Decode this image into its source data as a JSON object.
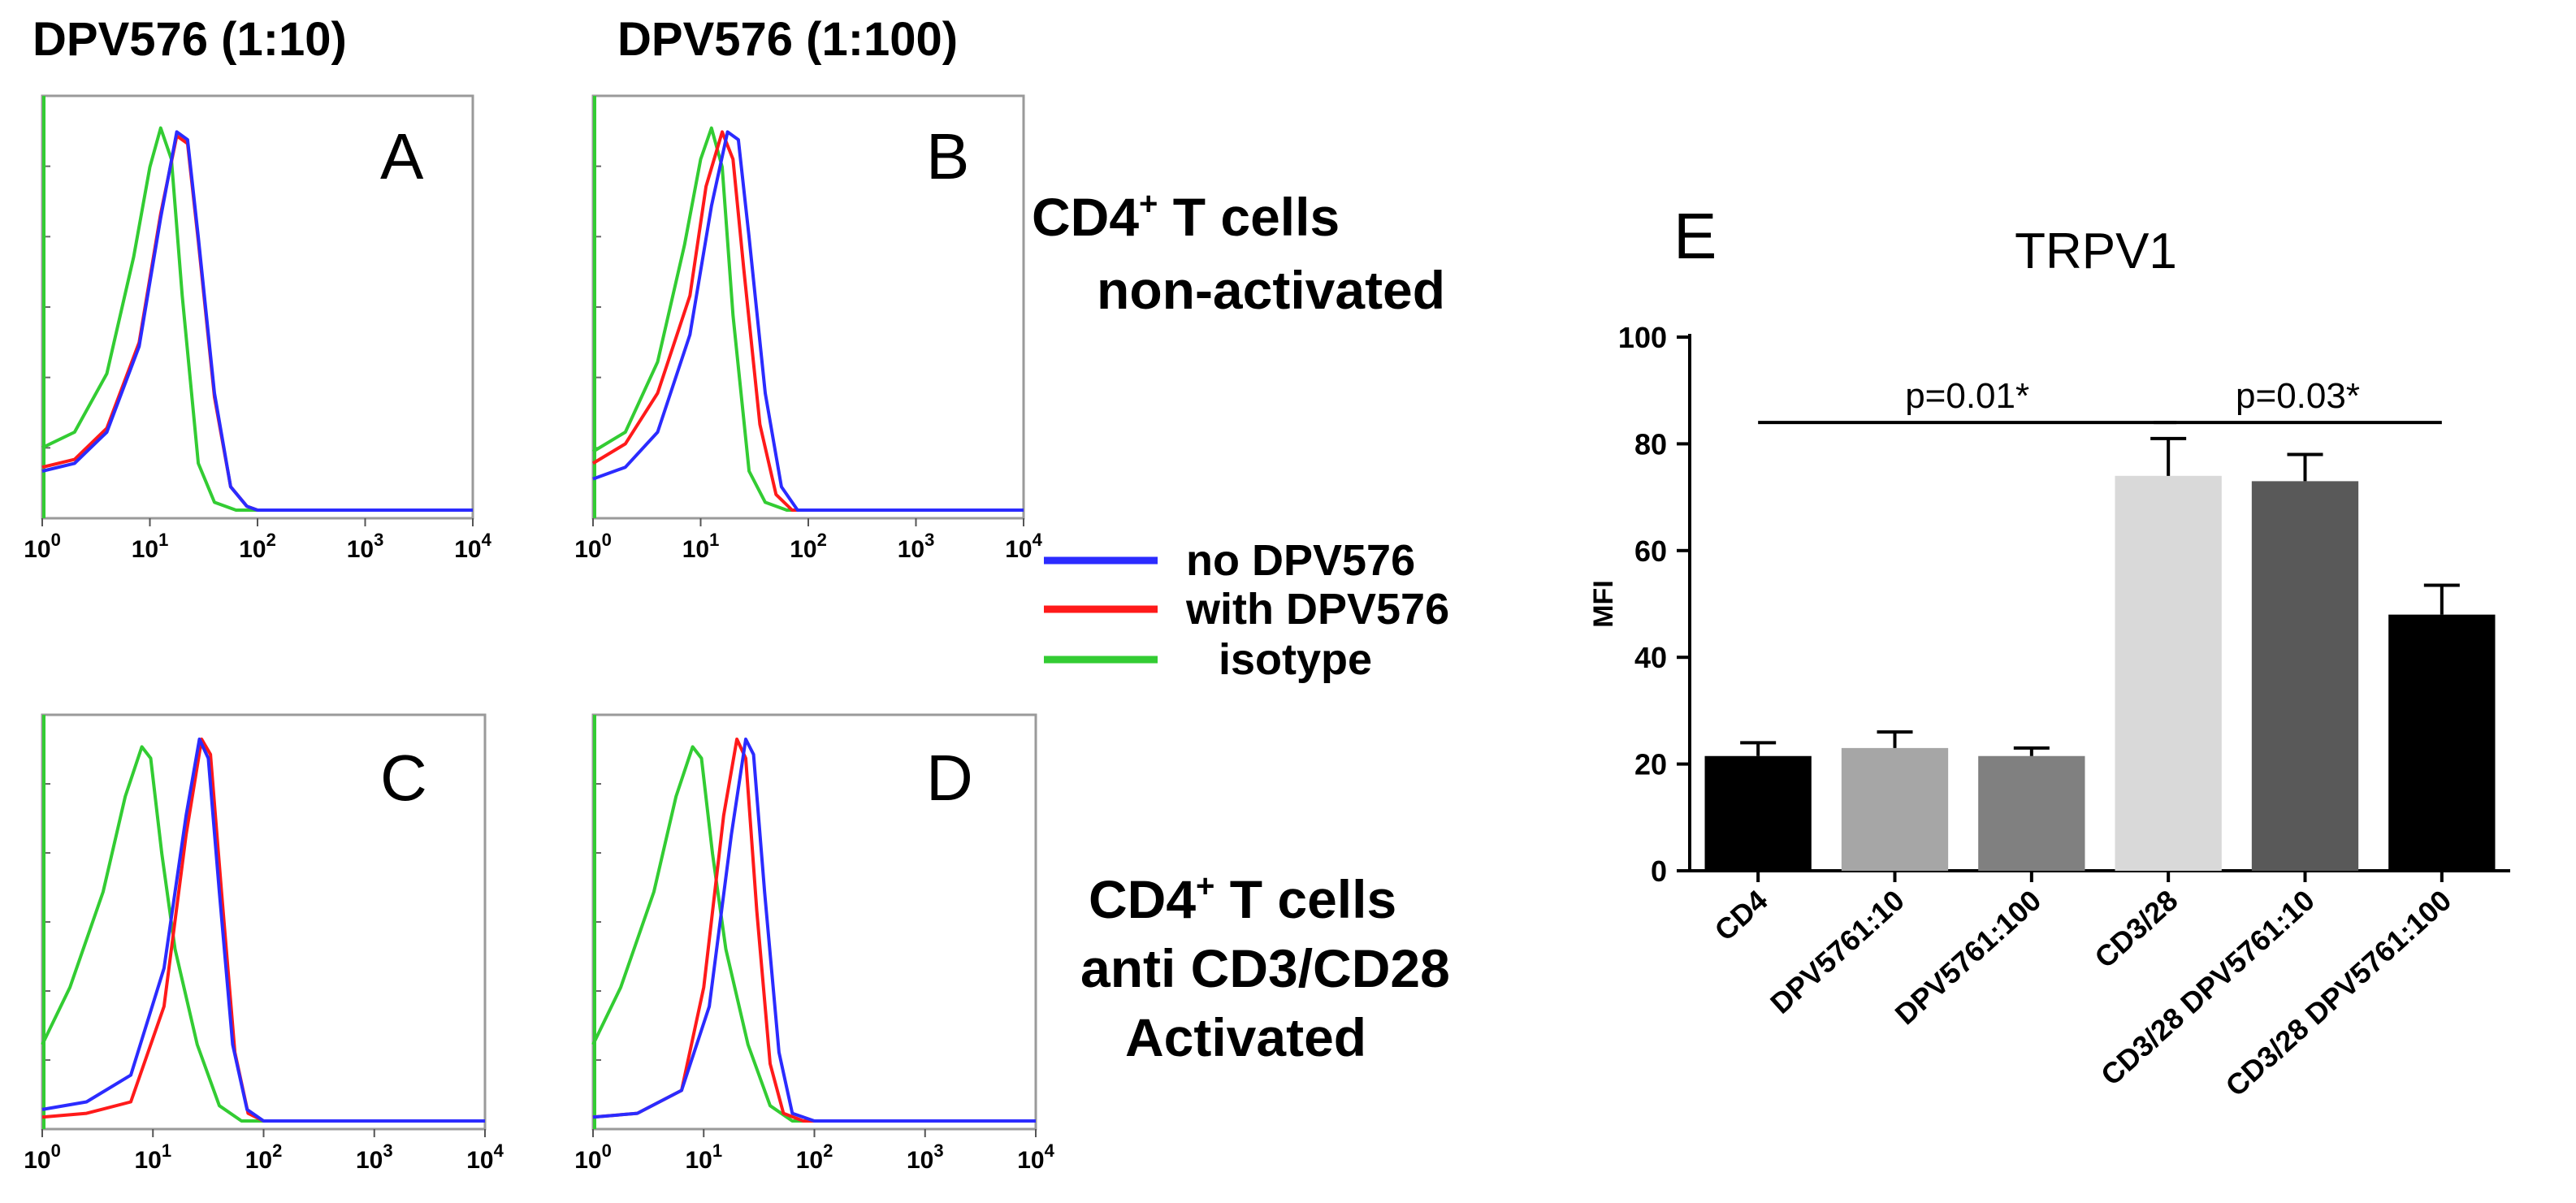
{
  "header": {
    "col1": "DPV576 (1:10)",
    "col2": "DPV576 (1:100)"
  },
  "side_labels": {
    "top_line1": "CD4",
    "top_sup": "+",
    "top_line1_rest": " T cells",
    "top_line2": "non-activated",
    "bottom_line1": "CD4",
    "bottom_sup": "+",
    "bottom_line1_rest": " T cells",
    "bottom_line2": "anti CD3/CD28",
    "bottom_line3": "Activated"
  },
  "legend": {
    "items": [
      {
        "label": "no DPV576",
        "color": "#2b2bff"
      },
      {
        "label": "with DPV576",
        "color": "#ff1a1a"
      },
      {
        "label": "isotype",
        "color": "#33cc33"
      }
    ]
  },
  "histogram_axis": {
    "ticks": [
      {
        "base": "10",
        "exp": "0",
        "value": 0
      },
      {
        "base": "10",
        "exp": "1",
        "value": 1
      },
      {
        "base": "10",
        "exp": "2",
        "value": 2
      },
      {
        "base": "10",
        "exp": "3",
        "value": 3
      },
      {
        "base": "10",
        "exp": "4",
        "value": 4
      }
    ]
  },
  "chart_data": [
    {
      "type": "line",
      "panel": "A",
      "title": "A",
      "xscale": "log10",
      "xlim": [
        0,
        4
      ],
      "ylim": [
        0,
        1
      ],
      "series": [
        {
          "name": "no DPV576",
          "color": "#2b2bff",
          "x": [
            0,
            0.3,
            0.6,
            0.9,
            1.1,
            1.25,
            1.35,
            1.45,
            1.6,
            1.75,
            1.9,
            2.0,
            4
          ],
          "y": [
            0.1,
            0.12,
            0.2,
            0.42,
            0.75,
            0.97,
            0.95,
            0.7,
            0.3,
            0.06,
            0.01,
            0,
            0
          ]
        },
        {
          "name": "with DPV576",
          "color": "#ff1a1a",
          "x": [
            0,
            0.3,
            0.6,
            0.9,
            1.1,
            1.25,
            1.35,
            1.45,
            1.6,
            1.75,
            1.9,
            2.0,
            4
          ],
          "y": [
            0.11,
            0.13,
            0.21,
            0.43,
            0.76,
            0.96,
            0.94,
            0.69,
            0.29,
            0.06,
            0.01,
            0,
            0
          ]
        },
        {
          "name": "isotype",
          "color": "#33cc33",
          "x": [
            0,
            0.3,
            0.6,
            0.85,
            1.0,
            1.1,
            1.2,
            1.3,
            1.45,
            1.6,
            1.8,
            4
          ],
          "y": [
            0.16,
            0.2,
            0.35,
            0.65,
            0.88,
            0.98,
            0.9,
            0.55,
            0.12,
            0.02,
            0,
            0
          ]
        }
      ]
    },
    {
      "type": "line",
      "panel": "B",
      "title": "B",
      "xscale": "log10",
      "xlim": [
        0,
        4
      ],
      "ylim": [
        0,
        1
      ],
      "series": [
        {
          "name": "no DPV576",
          "color": "#2b2bff",
          "x": [
            0,
            0.3,
            0.6,
            0.9,
            1.1,
            1.25,
            1.35,
            1.45,
            1.6,
            1.75,
            1.9,
            4
          ],
          "y": [
            0.08,
            0.11,
            0.2,
            0.45,
            0.78,
            0.97,
            0.95,
            0.7,
            0.3,
            0.06,
            0,
            0
          ]
        },
        {
          "name": "with DPV576",
          "color": "#ff1a1a",
          "x": [
            0,
            0.3,
            0.6,
            0.9,
            1.05,
            1.2,
            1.3,
            1.4,
            1.55,
            1.7,
            1.85,
            4
          ],
          "y": [
            0.12,
            0.17,
            0.3,
            0.55,
            0.83,
            0.97,
            0.9,
            0.62,
            0.22,
            0.04,
            0,
            0
          ]
        },
        {
          "name": "isotype",
          "color": "#33cc33",
          "x": [
            0,
            0.3,
            0.6,
            0.85,
            1.0,
            1.1,
            1.2,
            1.3,
            1.45,
            1.6,
            1.8,
            4
          ],
          "y": [
            0.15,
            0.2,
            0.38,
            0.68,
            0.9,
            0.98,
            0.88,
            0.5,
            0.1,
            0.02,
            0,
            0
          ]
        }
      ]
    },
    {
      "type": "line",
      "panel": "C",
      "title": "C",
      "xscale": "log10",
      "xlim": [
        0,
        4
      ],
      "ylim": [
        0,
        1
      ],
      "series": [
        {
          "name": "no DPV576",
          "color": "#2b2bff",
          "x": [
            0,
            0.4,
            0.8,
            1.1,
            1.3,
            1.42,
            1.5,
            1.6,
            1.72,
            1.85,
            2.0,
            4
          ],
          "y": [
            0.03,
            0.05,
            0.12,
            0.4,
            0.8,
            1.0,
            0.95,
            0.6,
            0.2,
            0.03,
            0,
            0
          ]
        },
        {
          "name": "with DPV576",
          "color": "#ff1a1a",
          "x": [
            0,
            0.4,
            0.8,
            1.1,
            1.3,
            1.44,
            1.52,
            1.62,
            1.74,
            1.86,
            2.0,
            4
          ],
          "y": [
            0.01,
            0.02,
            0.05,
            0.3,
            0.75,
            1.0,
            0.96,
            0.6,
            0.18,
            0.02,
            0,
            0
          ]
        },
        {
          "name": "isotype",
          "color": "#33cc33",
          "x": [
            0,
            0.25,
            0.55,
            0.75,
            0.9,
            0.98,
            1.08,
            1.2,
            1.4,
            1.6,
            1.8,
            4
          ],
          "y": [
            0.2,
            0.35,
            0.6,
            0.85,
            0.98,
            0.95,
            0.7,
            0.45,
            0.2,
            0.04,
            0,
            0
          ]
        }
      ]
    },
    {
      "type": "line",
      "panel": "D",
      "title": "D",
      "xscale": "log10",
      "xlim": [
        0,
        4
      ],
      "ylim": [
        0,
        1
      ],
      "series": [
        {
          "name": "no DPV576",
          "color": "#2b2bff",
          "x": [
            0,
            0.4,
            0.8,
            1.05,
            1.25,
            1.38,
            1.45,
            1.55,
            1.68,
            1.8,
            2.0,
            4
          ],
          "y": [
            0.01,
            0.02,
            0.08,
            0.3,
            0.75,
            1.0,
            0.96,
            0.6,
            0.18,
            0.02,
            0,
            0
          ]
        },
        {
          "name": "with DPV576",
          "color": "#ff1a1a",
          "x": [
            0,
            0.4,
            0.8,
            1.0,
            1.18,
            1.3,
            1.38,
            1.48,
            1.6,
            1.72,
            1.9,
            4
          ],
          "y": [
            0.01,
            0.02,
            0.08,
            0.35,
            0.8,
            1.0,
            0.95,
            0.55,
            0.15,
            0.02,
            0,
            0
          ]
        },
        {
          "name": "isotype",
          "color": "#33cc33",
          "x": [
            0,
            0.25,
            0.55,
            0.75,
            0.9,
            0.98,
            1.08,
            1.2,
            1.4,
            1.6,
            1.8,
            4
          ],
          "y": [
            0.2,
            0.35,
            0.6,
            0.85,
            0.98,
            0.95,
            0.7,
            0.45,
            0.2,
            0.04,
            0,
            0
          ]
        }
      ]
    },
    {
      "type": "bar",
      "panel": "E",
      "panel_letter": "E",
      "title": "TRPV1",
      "ylabel": "MFI",
      "xlabel": "",
      "ylim": [
        0,
        100
      ],
      "yticks": [
        0,
        20,
        40,
        60,
        80,
        100
      ],
      "categories": [
        "CD4",
        "DPV5761:10",
        "DPV5761:100",
        "CD3/28",
        "CD3/28 DPV5761:10",
        "CD3/28 DPV5761:100"
      ],
      "values": [
        21.5,
        23,
        21.5,
        74,
        73,
        48
      ],
      "errors": [
        2.5,
        3,
        1.5,
        7,
        5,
        5.5
      ],
      "bar_colors": [
        "#000000",
        "#a6a6a6",
        "#808080",
        "#d9d9d9",
        "#595959",
        "#000000"
      ],
      "annotations": [
        {
          "text": "p=0.01*",
          "from": 0,
          "to": 3,
          "y": 84
        },
        {
          "text": "p=0.03*",
          "from": 3,
          "to": 5,
          "y": 84
        }
      ]
    }
  ]
}
